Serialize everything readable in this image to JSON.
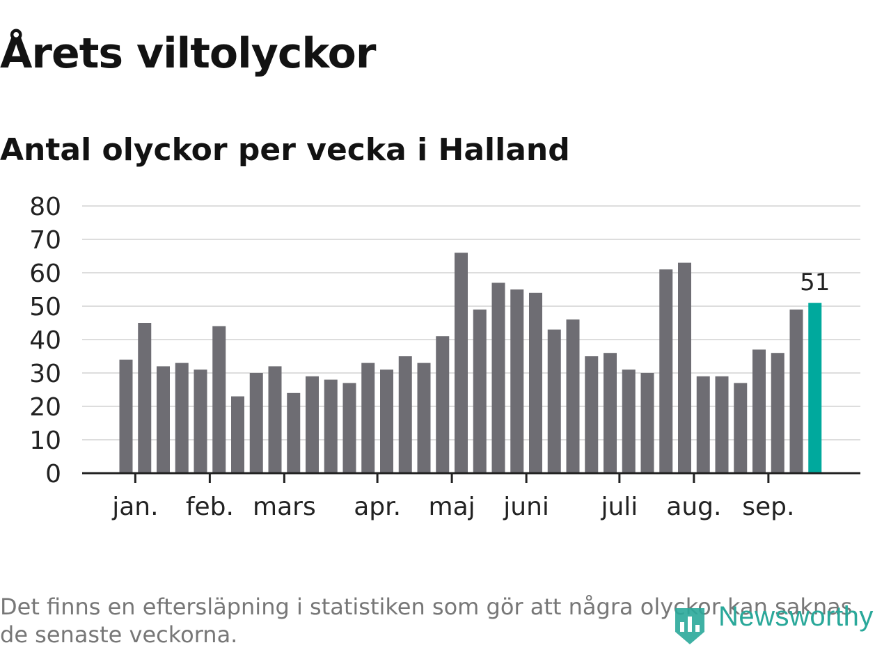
{
  "title": "Årets viltolyckor",
  "subtitle": "Antal olyckor per vecka i Halland",
  "footnote": "Det finns en eftersläpning i statistiken som gör att några olyckor kan saknas de senaste veckorna.",
  "brand": "Newsworthy",
  "colors": {
    "bar": "#6e6d73",
    "highlight": "#00a99d",
    "grid": "#dddddd",
    "axis": "#222222",
    "brand": "#2aa89a"
  },
  "chart_data": {
    "type": "bar",
    "title": "Antal olyckor per vecka i Halland",
    "xlabel": "",
    "ylabel": "",
    "ylim": [
      0,
      80
    ],
    "y_ticks": [
      0,
      10,
      20,
      30,
      40,
      50,
      60,
      70,
      80
    ],
    "grid": true,
    "values": [
      34,
      45,
      32,
      33,
      31,
      44,
      23,
      30,
      32,
      24,
      29,
      28,
      27,
      33,
      31,
      35,
      33,
      41,
      66,
      49,
      57,
      55,
      54,
      43,
      46,
      35,
      36,
      31,
      30,
      61,
      63,
      29,
      29,
      27,
      37,
      36,
      49,
      51
    ],
    "month_labels": [
      "jan.",
      "feb.",
      "mars",
      "apr.",
      "maj",
      "juni",
      "juli",
      "aug.",
      "sep."
    ],
    "month_tick_positions": [
      0.5,
      4.5,
      8.5,
      13.5,
      17.5,
      21.5,
      26.5,
      30.5,
      34.5
    ],
    "highlight_index": 37,
    "highlight_label": "51"
  }
}
